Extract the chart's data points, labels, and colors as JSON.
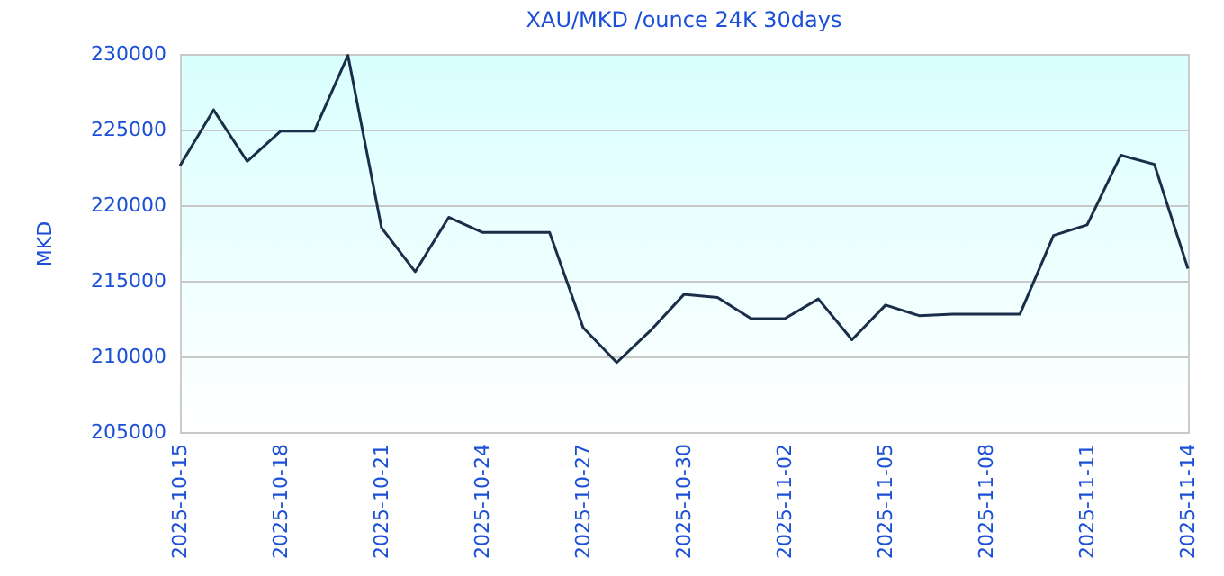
{
  "chart_data": {
    "type": "line",
    "title": "XAU/MKD /ounce 24K 30days",
    "ylabel": "MKD",
    "x": [
      "2025-10-15",
      "2025-10-16",
      "2025-10-17",
      "2025-10-18",
      "2025-10-19",
      "2025-10-20",
      "2025-10-21",
      "2025-10-22",
      "2025-10-23",
      "2025-10-24",
      "2025-10-25",
      "2025-10-26",
      "2025-10-27",
      "2025-10-28",
      "2025-10-29",
      "2025-10-30",
      "2025-10-31",
      "2025-11-01",
      "2025-11-02",
      "2025-11-03",
      "2025-11-04",
      "2025-11-05",
      "2025-11-06",
      "2025-11-07",
      "2025-11-08",
      "2025-11-09",
      "2025-11-10",
      "2025-11-11",
      "2025-11-12",
      "2025-11-13",
      "2025-11-14"
    ],
    "series": [
      {
        "color": "#1a2e4a",
        "values": [
          222600,
          226300,
          222900,
          224900,
          224900,
          229900,
          218500,
          215600,
          219200,
          218200,
          218200,
          218200,
          211900,
          209600,
          211700,
          214100,
          213900,
          212500,
          212500,
          213800,
          211100,
          213400,
          212700,
          212800,
          212800,
          212800,
          218000,
          218700,
          223300,
          222700,
          215800
        ]
      }
    ],
    "xlim": [
      "2025-10-15",
      "2025-11-14"
    ],
    "xticks": [
      "2025-10-15",
      "2025-10-18",
      "2025-10-21",
      "2025-10-24",
      "2025-10-27",
      "2025-10-30",
      "2025-11-02",
      "2025-11-05",
      "2025-11-08",
      "2025-11-11",
      "2025-11-14"
    ],
    "ylim": [
      205000,
      230000
    ],
    "yticks": [
      205000,
      210000,
      215000,
      220000,
      225000,
      230000
    ],
    "grid": "y",
    "marker": "none",
    "line_style": "solid"
  }
}
